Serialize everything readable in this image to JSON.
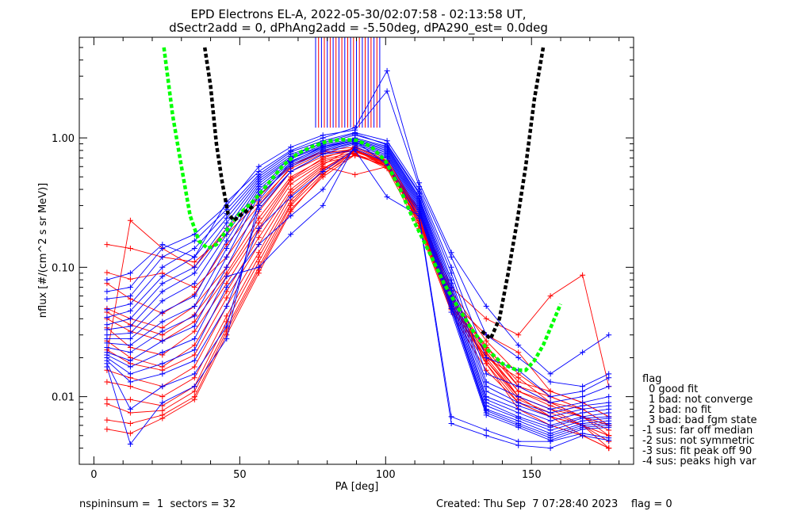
{
  "chart_data": {
    "type": "scatter",
    "title": "EPD Electrons EL-A, 2022-05-30/02:07:58 - 02:13:58 UT,",
    "subtitle": "dSectr2add = 0, dPhAng2add = -5.50deg, dPA290_est=   0.0deg",
    "xlabel": "PA [deg]",
    "ylabel": "nflux [#/(cm^2 s sr MeV)]",
    "xlim": [
      -5,
      185
    ],
    "ylim": [
      0.003,
      6
    ],
    "y_scale": "log",
    "x_ticks": [
      0,
      50,
      100,
      150
    ],
    "x_tick_labels": [
      "0",
      "50",
      "100",
      "150"
    ],
    "y_ticks": [
      0.01,
      0.1,
      1.0
    ],
    "y_tick_labels": [
      "0.01",
      "0.10",
      "1.00"
    ],
    "grid": false,
    "pa_bins": [
      4.5,
      12.5,
      23.5,
      34.5,
      45.5,
      56.5,
      67.5,
      78.5,
      89.5,
      100.5,
      111.5,
      122.5,
      134.5,
      145.5,
      156.5,
      167.5,
      176.5
    ],
    "series_colors": [
      "#ff0000",
      "#0000ff"
    ],
    "series": [
      {
        "color": "#ff0000",
        "profiles": [
          [
            0.021,
            0.23,
            0.14,
            0.1,
            0.2,
            0.35,
            0.62,
            0.78,
            0.8,
            0.62,
            0.28,
            0.06,
            0.022,
            0.01,
            0.007,
            0.006,
            0.0045
          ],
          [
            0.15,
            0.14,
            0.12,
            0.11,
            0.18,
            0.32,
            0.58,
            0.76,
            0.82,
            0.6,
            0.25,
            0.06,
            0.018,
            0.008,
            0.006,
            0.005,
            0.004
          ],
          [
            0.091,
            0.081,
            0.09,
            0.07,
            0.12,
            0.27,
            0.55,
            0.72,
            0.8,
            0.66,
            0.24,
            0.055,
            0.03,
            0.022,
            0.011,
            0.009,
            0.007
          ],
          [
            0.075,
            0.057,
            0.044,
            0.062,
            0.15,
            0.3,
            0.6,
            0.8,
            0.85,
            0.7,
            0.26,
            0.07,
            0.04,
            0.03,
            0.06,
            0.087,
            0.012
          ],
          [
            0.048,
            0.04,
            0.034,
            0.05,
            0.1,
            0.24,
            0.5,
            0.68,
            0.78,
            0.64,
            0.22,
            0.048,
            0.02,
            0.014,
            0.009,
            0.007,
            0.006
          ],
          [
            0.045,
            0.036,
            0.03,
            0.043,
            0.09,
            0.22,
            0.48,
            0.7,
            0.84,
            0.66,
            0.23,
            0.05,
            0.025,
            0.012,
            0.01,
            0.008,
            0.006
          ],
          [
            0.04,
            0.032,
            0.027,
            0.038,
            0.085,
            0.2,
            0.47,
            0.66,
            0.76,
            0.58,
            0.2,
            0.045,
            0.016,
            0.009,
            0.007,
            0.005,
            0.004
          ],
          [
            0.034,
            0.024,
            0.021,
            0.032,
            0.075,
            0.19,
            0.44,
            0.64,
            0.73,
            0.61,
            0.22,
            0.052,
            0.019,
            0.01,
            0.008,
            0.006,
            0.004
          ],
          [
            0.027,
            0.02,
            0.017,
            0.025,
            0.065,
            0.17,
            0.4,
            0.62,
            0.86,
            0.67,
            0.27,
            0.065,
            0.027,
            0.015,
            0.01,
            0.008,
            0.006
          ],
          [
            0.023,
            0.018,
            0.016,
            0.021,
            0.058,
            0.15,
            0.38,
            0.6,
            0.52,
            0.6,
            0.24,
            0.05,
            0.022,
            0.011,
            0.009,
            0.007,
            0.005
          ],
          [
            0.016,
            0.014,
            0.012,
            0.017,
            0.05,
            0.13,
            0.36,
            0.58,
            0.8,
            0.63,
            0.21,
            0.047,
            0.018,
            0.009,
            0.007,
            0.006,
            0.005
          ],
          [
            0.013,
            0.012,
            0.01,
            0.014,
            0.042,
            0.12,
            0.33,
            0.55,
            0.79,
            0.65,
            0.25,
            0.058,
            0.024,
            0.013,
            0.011,
            0.009,
            0.007
          ],
          [
            0.0095,
            0.0095,
            0.0085,
            0.012,
            0.038,
            0.11,
            0.31,
            0.57,
            0.81,
            0.59,
            0.23,
            0.054,
            0.02,
            0.01,
            0.008,
            0.007,
            0.006
          ],
          [
            0.0088,
            0.0075,
            0.0078,
            0.011,
            0.034,
            0.1,
            0.3,
            0.53,
            0.75,
            0.62,
            0.26,
            0.062,
            0.023,
            0.012,
            0.009,
            0.008,
            0.006
          ],
          [
            0.0066,
            0.0062,
            0.0072,
            0.01,
            0.032,
            0.095,
            0.28,
            0.5,
            0.74,
            0.6,
            0.22,
            0.049,
            0.019,
            0.0095,
            0.0075,
            0.006,
            0.005
          ],
          [
            0.0056,
            0.0052,
            0.0068,
            0.0095,
            0.03,
            0.09,
            0.27,
            0.52,
            0.79,
            0.64,
            0.24,
            0.056,
            0.021,
            0.011,
            0.0085,
            0.007,
            0.0055
          ]
        ]
      },
      {
        "color": "#0000ff",
        "profiles": [
          [
            0.08,
            0.09,
            0.15,
            0.12,
            0.32,
            0.55,
            0.8,
            1.0,
            1.2,
            3.3,
            0.45,
            0.13,
            0.05,
            0.025,
            0.015,
            0.022,
            0.03
          ],
          [
            0.065,
            0.07,
            0.14,
            0.18,
            0.3,
            0.6,
            0.85,
            1.05,
            1.15,
            2.3,
            0.42,
            0.12,
            0.03,
            0.02,
            0.013,
            0.012,
            0.015
          ],
          [
            0.057,
            0.06,
            0.12,
            0.16,
            0.28,
            0.52,
            0.78,
            0.95,
            1.1,
            0.95,
            0.4,
            0.1,
            0.02,
            0.016,
            0.01,
            0.011,
            0.014
          ],
          [
            0.047,
            0.052,
            0.1,
            0.14,
            0.26,
            0.5,
            0.75,
            0.9,
            1.05,
            0.9,
            0.38,
            0.09,
            0.015,
            0.012,
            0.009,
            0.01,
            0.012
          ],
          [
            0.041,
            0.046,
            0.085,
            0.12,
            0.24,
            0.48,
            0.72,
            0.92,
            1.08,
            0.88,
            0.37,
            0.08,
            0.013,
            0.01,
            0.008,
            0.009,
            0.01
          ],
          [
            0.036,
            0.04,
            0.075,
            0.1,
            0.22,
            0.46,
            0.7,
            0.88,
            1.0,
            0.86,
            0.35,
            0.075,
            0.012,
            0.009,
            0.0075,
            0.0085,
            0.009
          ],
          [
            0.033,
            0.035,
            0.065,
            0.09,
            0.2,
            0.44,
            0.69,
            0.86,
            0.98,
            0.84,
            0.34,
            0.07,
            0.011,
            0.0085,
            0.007,
            0.008,
            0.0085
          ],
          [
            0.03,
            0.031,
            0.055,
            0.075,
            0.18,
            0.42,
            0.66,
            0.84,
            0.96,
            0.82,
            0.33,
            0.066,
            0.01,
            0.008,
            0.0065,
            0.0075,
            0.008
          ],
          [
            0.028,
            0.028,
            0.045,
            0.06,
            0.16,
            0.4,
            0.64,
            0.82,
            0.95,
            0.8,
            0.32,
            0.062,
            0.0095,
            0.0075,
            0.006,
            0.007,
            0.0075
          ],
          [
            0.026,
            0.025,
            0.038,
            0.05,
            0.14,
            0.38,
            0.62,
            0.8,
            0.93,
            0.78,
            0.31,
            0.058,
            0.009,
            0.007,
            0.0058,
            0.0068,
            0.007
          ],
          [
            0.024,
            0.022,
            0.032,
            0.042,
            0.12,
            0.36,
            0.6,
            0.78,
            0.92,
            0.76,
            0.3,
            0.055,
            0.0085,
            0.0068,
            0.0055,
            0.0065,
            0.0068
          ],
          [
            0.022,
            0.019,
            0.027,
            0.035,
            0.1,
            0.3,
            0.55,
            0.75,
            0.9,
            0.74,
            0.29,
            0.052,
            0.008,
            0.0065,
            0.0052,
            0.0062,
            0.0065
          ],
          [
            0.021,
            0.017,
            0.022,
            0.028,
            0.085,
            0.1,
            0.18,
            0.3,
            0.88,
            0.72,
            0.28,
            0.05,
            0.0078,
            0.0062,
            0.005,
            0.006,
            0.0062
          ],
          [
            0.02,
            0.015,
            0.018,
            0.023,
            0.07,
            0.15,
            0.25,
            0.4,
            0.85,
            0.7,
            0.27,
            0.048,
            0.0075,
            0.006,
            0.0048,
            0.0058,
            0.006
          ],
          [
            0.019,
            0.013,
            0.015,
            0.019,
            0.05,
            0.2,
            0.35,
            0.55,
            0.82,
            0.65,
            0.26,
            0.045,
            0.0072,
            0.0058,
            0.0046,
            0.0056,
            0.0058
          ],
          [
            0.018,
            0.008,
            0.012,
            0.015,
            0.035,
            0.28,
            0.55,
            0.75,
            0.8,
            0.35,
            0.25,
            0.007,
            0.0055,
            0.0045,
            0.0045,
            0.0052,
            0.0048
          ],
          [
            0.017,
            0.0043,
            0.009,
            0.012,
            0.028,
            0.33,
            0.65,
            0.86,
            0.95,
            0.62,
            0.24,
            0.0062,
            0.005,
            0.0042,
            0.004,
            0.005,
            0.0046
          ]
        ]
      }
    ],
    "fit_curves": [
      {
        "color": "#00ff00",
        "style": "dashed",
        "x": [
          24,
          27,
          30,
          33,
          36,
          39,
          42,
          46,
          50,
          55,
          60,
          65,
          70,
          75,
          80,
          85,
          90,
          95,
          100,
          105,
          110,
          115,
          120,
          125,
          130,
          135,
          140,
          145,
          148,
          151,
          154,
          157,
          160
        ],
        "y": [
          5.0,
          1.5,
          0.6,
          0.25,
          0.16,
          0.14,
          0.15,
          0.2,
          0.26,
          0.33,
          0.45,
          0.62,
          0.76,
          0.86,
          0.94,
          0.97,
          0.96,
          0.86,
          0.66,
          0.4,
          0.22,
          0.13,
          0.075,
          0.048,
          0.032,
          0.023,
          0.018,
          0.016,
          0.016,
          0.019,
          0.025,
          0.036,
          0.052
        ]
      },
      {
        "color": "#000000",
        "style": "dashed",
        "x": [
          38,
          40,
          42,
          44,
          46,
          48,
          50,
          55
        ],
        "y": [
          5.0,
          2.5,
          0.9,
          0.45,
          0.26,
          0.23,
          0.25,
          0.3
        ]
      },
      {
        "color": "#000000",
        "style": "dashed",
        "x": [
          133,
          136,
          139,
          142,
          145,
          148,
          151,
          154
        ],
        "y": [
          0.032,
          0.028,
          0.04,
          0.09,
          0.22,
          0.6,
          2.0,
          5.0
        ]
      }
    ],
    "top_markers": {
      "x_start": 76,
      "x_end": 98,
      "colors": [
        "#0000ff",
        "#ff0000"
      ]
    },
    "legend": {
      "title": "flag",
      "placement": "right",
      "items": [
        "0 good fit",
        "1 bad: not converge",
        "2 bad: no fit",
        "3 bad: bad fgm state",
        "-1 sus: far off median",
        "-2 sus: not symmetric",
        "-3 sus: fit peak off 90",
        "-4 sus: peaks high var"
      ]
    },
    "footer": {
      "left": "nspininsum =  1  sectors = 32",
      "right": "Created: Thu Sep  7 07:28:40 2023    flag = 0"
    }
  }
}
